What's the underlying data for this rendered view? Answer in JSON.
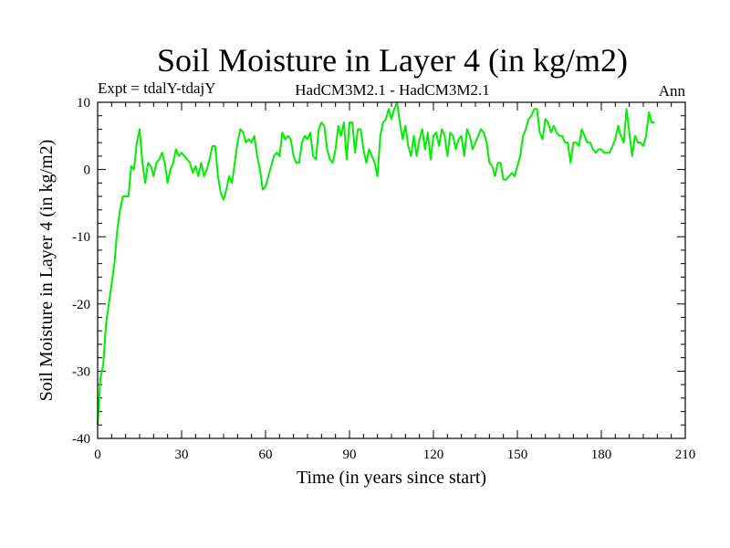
{
  "chart_data": {
    "type": "line",
    "title": "Soil Moisture in Layer 4 (in kg/m2)",
    "subtitle_left": "Expt = tdalY-tdajY",
    "subtitle_center": "HadCM3M2.1 - HadCM3M2.1",
    "subtitle_right": "Ann",
    "xlabel": "Time (in years since start)",
    "ylabel": "Soil Moisture in Layer 4 (in kg/m2)",
    "xlim": [
      0,
      210
    ],
    "ylim": [
      -40,
      10
    ],
    "xticks": [
      0,
      30,
      60,
      90,
      120,
      150,
      180,
      210
    ],
    "yticks": [
      -40,
      -30,
      -20,
      -10,
      0,
      10
    ],
    "grid": false,
    "series": [
      {
        "color": "#00ee00",
        "x": [
          0,
          1,
          2,
          3,
          4,
          5,
          6,
          7,
          8,
          9,
          10,
          11,
          12,
          13,
          14,
          15,
          16,
          17,
          18,
          19,
          20,
          21,
          22,
          23,
          24,
          25,
          26,
          27,
          28,
          29,
          30,
          31,
          32,
          33,
          34,
          35,
          36,
          37,
          38,
          39,
          40,
          41,
          42,
          43,
          44,
          45,
          46,
          47,
          48,
          49,
          50,
          51,
          52,
          53,
          54,
          55,
          56,
          57,
          58,
          59,
          60,
          61,
          62,
          63,
          64,
          65,
          66,
          67,
          68,
          69,
          70,
          71,
          72,
          73,
          74,
          75,
          76,
          77,
          78,
          79,
          80,
          81,
          82,
          83,
          84,
          85,
          86,
          87,
          88,
          89,
          90,
          91,
          92,
          93,
          94,
          95,
          96,
          97,
          98,
          99,
          100,
          101,
          102,
          103,
          104,
          105,
          106,
          107,
          108,
          109,
          110,
          111,
          112,
          113,
          114,
          115,
          116,
          117,
          118,
          119,
          120,
          121,
          122,
          123,
          124,
          125,
          126,
          127,
          128,
          129,
          130,
          131,
          132,
          133,
          134,
          135,
          136,
          137,
          138,
          139,
          140,
          141,
          142,
          143,
          144,
          145,
          146,
          147,
          148,
          149,
          150,
          151,
          152,
          153,
          154,
          155,
          156,
          157,
          158,
          159,
          160,
          161,
          162,
          163,
          164,
          165,
          166,
          167,
          168,
          169,
          170,
          171,
          172,
          173,
          174,
          175,
          176,
          177,
          178,
          179,
          180,
          181,
          182,
          183,
          184,
          185,
          186,
          187,
          188,
          189,
          190,
          191,
          192,
          193,
          194,
          195,
          196,
          197,
          198,
          199
        ],
        "y": [
          -38,
          -31,
          -29,
          -23,
          -20,
          -17,
          -14,
          -9,
          -6,
          -4,
          -4,
          -4,
          0.5,
          0,
          4,
          6,
          1,
          -2,
          1,
          0.5,
          -1,
          1,
          1.5,
          2.5,
          1,
          -2,
          0,
          1,
          3,
          2,
          2.5,
          2,
          1.5,
          1,
          -0.5,
          0.5,
          -1,
          1,
          -1,
          0,
          1.5,
          3.5,
          3.5,
          -1,
          -3.5,
          -4.5,
          -3,
          -1,
          -2,
          1,
          4,
          6,
          5.5,
          4,
          4.5,
          4,
          5,
          2,
          0,
          -3,
          -2.5,
          -1,
          0.5,
          2,
          2.5,
          2,
          5.5,
          4.5,
          5,
          4.5,
          2,
          1,
          1,
          4,
          5,
          4.5,
          5.5,
          2,
          1.5,
          6,
          7,
          6.5,
          3,
          1.5,
          1,
          3,
          6.5,
          5,
          7,
          1.5,
          7,
          7,
          2.5,
          6,
          6,
          3,
          1,
          3,
          2,
          1,
          -1,
          5,
          7,
          7.5,
          9,
          7.5,
          9,
          10,
          7,
          4.5,
          6.5,
          3.5,
          2,
          5,
          2,
          4.5,
          6,
          3,
          5.5,
          1.5,
          5,
          5.5,
          3.5,
          6,
          5,
          2,
          5.5,
          5,
          3,
          4.5,
          5,
          2,
          6,
          5,
          3,
          4,
          5,
          6,
          5.5,
          4,
          1,
          0.5,
          -1,
          1,
          1,
          -1.5,
          -1.5,
          -1,
          -0.5,
          -1,
          0.5,
          2,
          5,
          6,
          7.5,
          8,
          9,
          9,
          5.5,
          4.5,
          7.5,
          7,
          5.5,
          6.5,
          5.5,
          5,
          5,
          4,
          4,
          1,
          4,
          4,
          3.5,
          6,
          5,
          4,
          4,
          3,
          2.5,
          3,
          3,
          2.5,
          2.5,
          2.5,
          3.5,
          4.5,
          6.5,
          5,
          4,
          9,
          5.5,
          2,
          5,
          4,
          4,
          3.5,
          5,
          8.5,
          7,
          7
        ]
      }
    ]
  }
}
